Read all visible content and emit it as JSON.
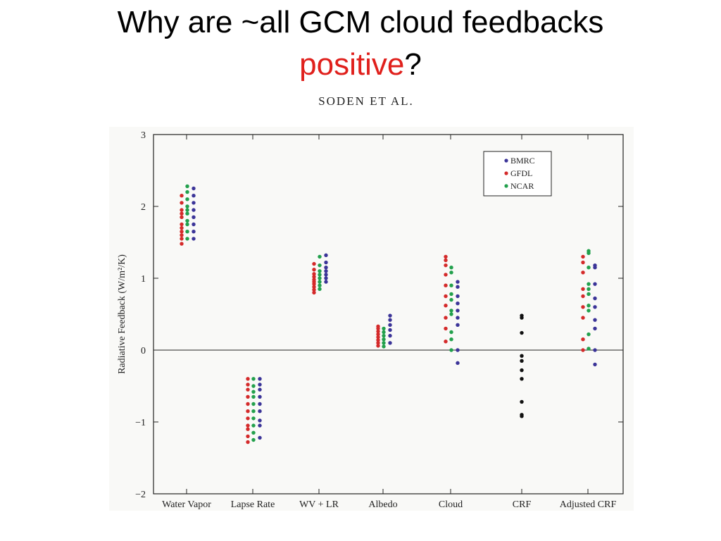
{
  "slide": {
    "title_main": "Why are ~all GCM cloud feedbacks",
    "title_accent": "positive",
    "title_end": "?",
    "subtitle": "SODEN ET AL."
  },
  "chart_data": {
    "type": "scatter",
    "ylabel": "Radiative Feedback (W/m²/K)",
    "ylim": [
      -2,
      3
    ],
    "yticks": [
      "−2",
      "−1",
      "0",
      "1",
      "2",
      "3"
    ],
    "ytick_values": [
      -2,
      -1,
      0,
      1,
      2,
      3
    ],
    "categories": [
      "Water Vapor",
      "Lapse Rate",
      "WV + LR",
      "Albedo",
      "Cloud",
      "CRF",
      "Adjusted CRF"
    ],
    "legend_position": "top-right",
    "colors": {
      "BMRC": "#3b3498",
      "GFDL": "#d42a2a",
      "NCAR": "#22a04c",
      "CRF": "#111111"
    },
    "series": [
      {
        "name": "GFDL",
        "values": [
          [
            1.48,
            1.55,
            1.6,
            1.65,
            1.7,
            1.75,
            1.85,
            1.9,
            1.95,
            2.05,
            2.15
          ],
          [
            -1.28,
            -1.2,
            -1.1,
            -1.05,
            -0.95,
            -0.85,
            -0.75,
            -0.65,
            -0.55,
            -0.48,
            -0.4
          ],
          [
            0.8,
            0.84,
            0.88,
            0.92,
            0.95,
            0.98,
            1.02,
            1.06,
            1.12,
            1.2
          ],
          [
            0.06,
            0.1,
            0.14,
            0.18,
            0.22,
            0.26,
            0.3,
            0.33
          ],
          [
            0.12,
            0.3,
            0.45,
            0.62,
            0.75,
            0.9,
            1.05,
            1.18,
            1.25,
            1.3
          ],
          [],
          [
            0.0,
            0.15,
            0.45,
            0.6,
            0.75,
            0.85,
            1.08,
            1.22,
            1.3
          ]
        ]
      },
      {
        "name": "NCAR",
        "values": [
          [
            1.55,
            1.65,
            1.75,
            1.8,
            1.9,
            1.95,
            2.0,
            2.1,
            2.2,
            2.28
          ],
          [
            -1.25,
            -1.15,
            -1.05,
            -0.95,
            -0.85,
            -0.75,
            -0.65,
            -0.58,
            -0.5,
            -0.4
          ],
          [
            0.85,
            0.9,
            0.95,
            1.0,
            1.05,
            1.1,
            1.18,
            1.3
          ],
          [
            0.05,
            0.1,
            0.15,
            0.2,
            0.25,
            0.3
          ],
          [
            0.0,
            0.15,
            0.25,
            0.5,
            0.55,
            0.7,
            0.78,
            0.9,
            1.08,
            1.15
          ],
          [],
          [
            0.02,
            0.22,
            0.55,
            0.62,
            0.78,
            0.85,
            0.92,
            1.15,
            1.35,
            1.38
          ]
        ]
      },
      {
        "name": "BMRC",
        "values": [
          [
            1.55,
            1.65,
            1.75,
            1.85,
            1.95,
            2.05,
            2.15,
            2.25
          ],
          [
            -1.22,
            -1.05,
            -0.98,
            -0.85,
            -0.75,
            -0.65,
            -0.55,
            -0.48,
            -0.4
          ],
          [
            0.95,
            1.0,
            1.05,
            1.1,
            1.15,
            1.22,
            1.32
          ],
          [
            0.1,
            0.2,
            0.28,
            0.35,
            0.42,
            0.48
          ],
          [
            -0.18,
            0.0,
            0.35,
            0.45,
            0.55,
            0.65,
            0.75,
            0.88,
            0.95
          ],
          [],
          [
            -0.2,
            0.0,
            0.3,
            0.42,
            0.6,
            0.72,
            0.92,
            1.15,
            1.18
          ]
        ]
      },
      {
        "name": "CRF",
        "values": [
          [],
          [],
          [],
          [],
          [],
          [
            -0.92,
            -0.9,
            -0.72,
            -0.4,
            -0.28,
            -0.15,
            -0.08,
            0.24,
            0.45,
            0.48
          ],
          []
        ]
      }
    ]
  }
}
